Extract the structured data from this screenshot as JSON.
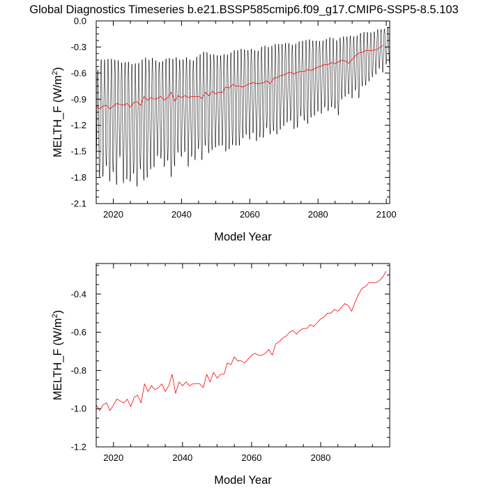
{
  "title": "Global Diagnostics Timeseries b.e21.BSSP585cmip6.f09_g17.CMIP6-SSP5-8.5.103",
  "chart_data": [
    {
      "type": "line",
      "xlabel": "Model Year",
      "ylabel": "MELTH_F (W/m2)",
      "xlim": [
        2015,
        2101
      ],
      "ylim": [
        -2.1,
        0.0
      ],
      "xticks": [
        2020,
        2040,
        2060,
        2080,
        2100
      ],
      "xtick_labels": [
        "2020",
        "2040",
        "2060",
        "2080",
        "2100"
      ],
      "yticks": [
        0.0,
        -0.3,
        -0.6,
        -0.9,
        -1.2,
        -1.5,
        -1.8,
        -2.1
      ],
      "ytick_labels": [
        "0.0",
        "-0.3",
        "-0.6",
        "-0.9",
        "-1.2",
        "-1.5",
        "-1.8",
        "-2.1"
      ],
      "series": [
        {
          "type": "monthly-envelope",
          "color": "#000000",
          "x_start": 2015,
          "max": [
            -0.66,
            -0.42,
            -0.42,
            -0.43,
            -0.4,
            -0.43,
            -0.42,
            -0.45,
            -0.47,
            -0.43,
            -0.47,
            -0.48,
            -0.45,
            -0.48,
            -0.36,
            -0.45,
            -0.4,
            -0.41,
            -0.47,
            -0.44,
            -0.45,
            -0.38,
            -0.44,
            -0.39,
            -0.41,
            -0.45,
            -0.4,
            -0.4,
            -0.46,
            -0.41,
            -0.38,
            -0.35,
            -0.32,
            -0.37,
            -0.36,
            -0.37,
            -0.39,
            -0.37,
            -0.36,
            -0.38,
            -0.31,
            -0.33,
            -0.31,
            -0.3,
            -0.33,
            -0.31,
            -0.3,
            -0.35,
            -0.3,
            -0.26,
            -0.28,
            -0.29,
            -0.25,
            -0.25,
            -0.25,
            -0.25,
            -0.23,
            -0.26,
            -0.26,
            -0.23,
            -0.21,
            -0.22,
            -0.19,
            -0.21,
            -0.22,
            -0.21,
            -0.23,
            -0.2,
            -0.19,
            -0.16,
            -0.22,
            -0.2,
            -0.16,
            -0.18,
            -0.16,
            -0.16,
            -0.18,
            -0.14,
            -0.12,
            -0.12,
            -0.12,
            -0.13,
            -0.1,
            -0.08,
            -0.1,
            -0.07
          ],
          "min": [
            -1.7,
            -1.82,
            -1.81,
            -1.68,
            -1.87,
            -1.75,
            -1.91,
            -1.56,
            -1.89,
            -1.84,
            -1.87,
            -1.77,
            -1.93,
            -1.71,
            -1.86,
            -1.82,
            -1.72,
            -1.7,
            -1.56,
            -1.6,
            -1.7,
            -1.62,
            -1.82,
            -1.68,
            -1.52,
            -1.58,
            -1.52,
            -1.7,
            -1.57,
            -1.62,
            -1.48,
            -1.62,
            -1.44,
            -1.54,
            -1.5,
            -1.47,
            -1.45,
            -1.45,
            -1.52,
            -1.49,
            -1.44,
            -1.45,
            -1.45,
            -1.36,
            -1.32,
            -1.38,
            -1.3,
            -1.4,
            -1.35,
            -1.36,
            -1.24,
            -1.32,
            -1.28,
            -1.32,
            -1.26,
            -1.22,
            -1.18,
            -1.16,
            -1.26,
            -1.24,
            -1.1,
            -1.16,
            -1.2,
            -1.12,
            -1.1,
            -1.05,
            -1.08,
            -1.0,
            -1.05,
            -1.0,
            -1.02,
            -1.1,
            -0.9,
            -0.88,
            -0.85,
            -0.9,
            -0.8,
            -0.9,
            -0.75,
            -0.75,
            -0.7,
            -0.65,
            -0.62,
            -0.55,
            -0.6,
            -0.5
          ]
        },
        {
          "type": "annual-mean",
          "color": "#ff0000",
          "x": [
            2015,
            2016,
            2017,
            2018,
            2019,
            2020,
            2021,
            2022,
            2023,
            2024,
            2025,
            2026,
            2027,
            2028,
            2029,
            2030,
            2031,
            2032,
            2033,
            2034,
            2035,
            2036,
            2037,
            2038,
            2039,
            2040,
            2041,
            2042,
            2043,
            2044,
            2045,
            2046,
            2047,
            2048,
            2049,
            2050,
            2051,
            2052,
            2053,
            2054,
            2055,
            2056,
            2057,
            2058,
            2059,
            2060,
            2061,
            2062,
            2063,
            2064,
            2065,
            2066,
            2067,
            2068,
            2069,
            2070,
            2071,
            2072,
            2073,
            2074,
            2075,
            2076,
            2077,
            2078,
            2079,
            2080,
            2081,
            2082,
            2083,
            2084,
            2085,
            2086,
            2087,
            2088,
            2089,
            2090,
            2091,
            2092,
            2093,
            2094,
            2095,
            2096,
            2097,
            2098,
            2099
          ],
          "y": [
            -0.98,
            -1.01,
            -0.98,
            -0.97,
            -1.01,
            -0.98,
            -0.95,
            -0.96,
            -0.97,
            -0.95,
            -0.99,
            -0.94,
            -0.93,
            -0.97,
            -0.87,
            -0.91,
            -0.88,
            -0.9,
            -0.89,
            -0.87,
            -0.91,
            -0.88,
            -0.82,
            -0.92,
            -0.86,
            -0.88,
            -0.86,
            -0.88,
            -0.87,
            -0.87,
            -0.87,
            -0.89,
            -0.82,
            -0.86,
            -0.81,
            -0.84,
            -0.82,
            -0.82,
            -0.76,
            -0.77,
            -0.73,
            -0.75,
            -0.75,
            -0.76,
            -0.74,
            -0.72,
            -0.71,
            -0.72,
            -0.72,
            -0.71,
            -0.69,
            -0.72,
            -0.66,
            -0.65,
            -0.63,
            -0.62,
            -0.6,
            -0.59,
            -0.61,
            -0.59,
            -0.58,
            -0.58,
            -0.56,
            -0.57,
            -0.55,
            -0.53,
            -0.52,
            -0.5,
            -0.5,
            -0.48,
            -0.49,
            -0.47,
            -0.45,
            -0.46,
            -0.49,
            -0.44,
            -0.4,
            -0.37,
            -0.36,
            -0.34,
            -0.34,
            -0.34,
            -0.33,
            -0.31,
            -0.28
          ]
        }
      ]
    },
    {
      "type": "line",
      "xlabel": "Model Year",
      "ylabel": "MELTH_F (W/m2)",
      "xlim": [
        2015,
        2100
      ],
      "ylim": [
        -1.2,
        -0.24
      ],
      "xticks": [
        2020,
        2040,
        2060,
        2080
      ],
      "xtick_labels": [
        "2020",
        "2040",
        "2060",
        "2080"
      ],
      "yticks": [
        -0.4,
        -0.6,
        -0.8,
        -1.0,
        -1.2
      ],
      "ytick_labels": [
        "-0.4",
        "-0.6",
        "-0.8",
        "-1.0",
        "-1.2"
      ],
      "series": [
        {
          "type": "annual-mean",
          "color": "#ff0000",
          "x": [
            2015,
            2016,
            2017,
            2018,
            2019,
            2020,
            2021,
            2022,
            2023,
            2024,
            2025,
            2026,
            2027,
            2028,
            2029,
            2030,
            2031,
            2032,
            2033,
            2034,
            2035,
            2036,
            2037,
            2038,
            2039,
            2040,
            2041,
            2042,
            2043,
            2044,
            2045,
            2046,
            2047,
            2048,
            2049,
            2050,
            2051,
            2052,
            2053,
            2054,
            2055,
            2056,
            2057,
            2058,
            2059,
            2060,
            2061,
            2062,
            2063,
            2064,
            2065,
            2066,
            2067,
            2068,
            2069,
            2070,
            2071,
            2072,
            2073,
            2074,
            2075,
            2076,
            2077,
            2078,
            2079,
            2080,
            2081,
            2082,
            2083,
            2084,
            2085,
            2086,
            2087,
            2088,
            2089,
            2090,
            2091,
            2092,
            2093,
            2094,
            2095,
            2096,
            2097,
            2098,
            2099
          ],
          "y": [
            -0.98,
            -1.01,
            -0.98,
            -0.97,
            -1.01,
            -0.98,
            -0.95,
            -0.96,
            -0.97,
            -0.95,
            -0.99,
            -0.94,
            -0.93,
            -0.97,
            -0.87,
            -0.91,
            -0.88,
            -0.9,
            -0.89,
            -0.87,
            -0.91,
            -0.88,
            -0.82,
            -0.92,
            -0.86,
            -0.88,
            -0.86,
            -0.88,
            -0.87,
            -0.87,
            -0.87,
            -0.89,
            -0.82,
            -0.86,
            -0.81,
            -0.84,
            -0.82,
            -0.82,
            -0.76,
            -0.77,
            -0.73,
            -0.75,
            -0.75,
            -0.76,
            -0.74,
            -0.72,
            -0.71,
            -0.72,
            -0.72,
            -0.71,
            -0.69,
            -0.72,
            -0.66,
            -0.65,
            -0.63,
            -0.62,
            -0.6,
            -0.59,
            -0.61,
            -0.59,
            -0.58,
            -0.58,
            -0.56,
            -0.57,
            -0.55,
            -0.53,
            -0.52,
            -0.5,
            -0.5,
            -0.48,
            -0.49,
            -0.47,
            -0.45,
            -0.46,
            -0.49,
            -0.44,
            -0.4,
            -0.37,
            -0.36,
            -0.34,
            -0.34,
            -0.34,
            -0.33,
            -0.31,
            -0.28
          ]
        }
      ]
    }
  ]
}
